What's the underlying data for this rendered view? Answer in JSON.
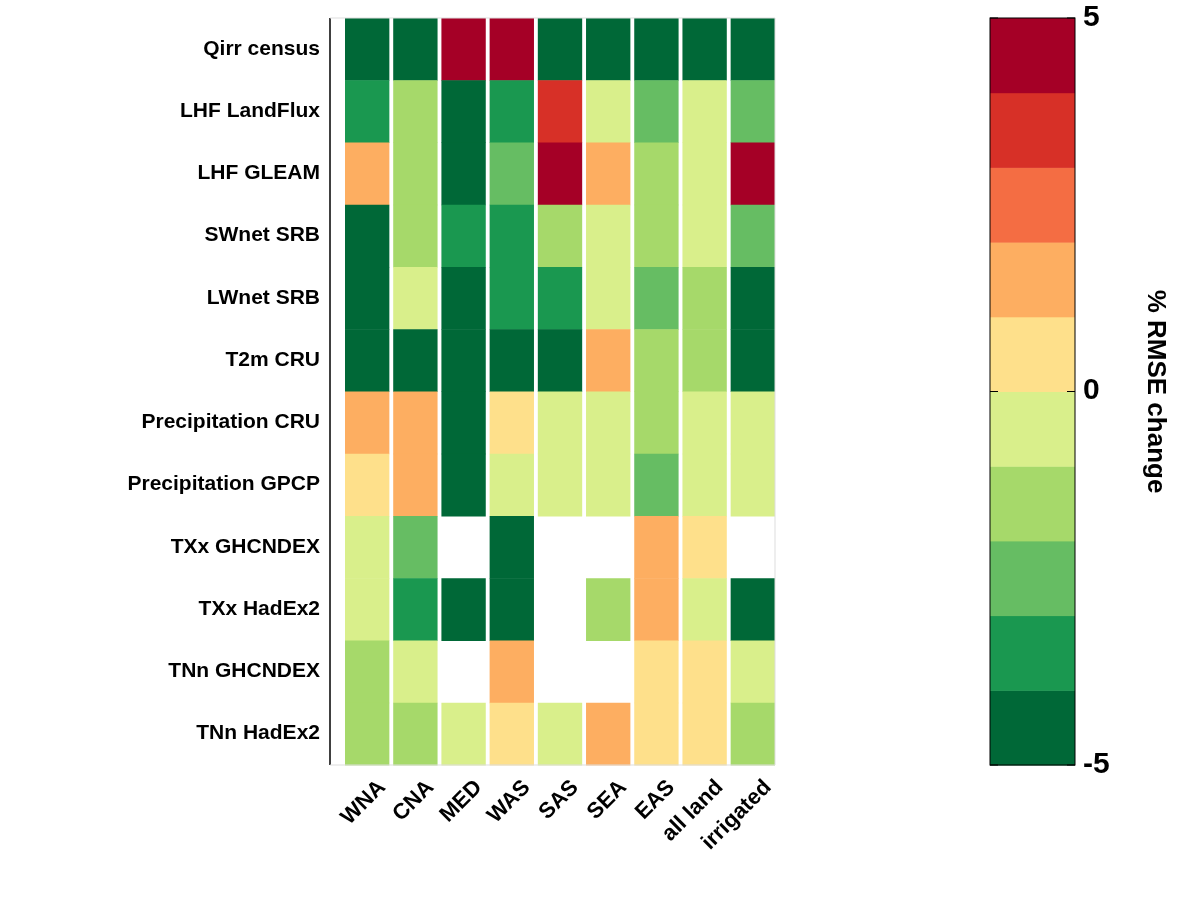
{
  "chart_data": {
    "type": "heatmap",
    "clabel": "% RMSE change",
    "categories": [
      "WNA",
      "CNA",
      "MED",
      "WAS",
      "SAS",
      "SEA",
      "EAS",
      "all land",
      "irrigated"
    ],
    "y_categories": [
      "Qirr census",
      "LHF LandFlux",
      "LHF GLEAM",
      "SWnet SRB",
      "LWnet SRB",
      "T2m CRU",
      "Precipitation CRU",
      "Precipitation GPCP",
      "TXx GHCNDEX",
      "TXx HadEx2",
      "TNn GHCNDEX",
      "TNn HadEx2"
    ],
    "cells": [
      [
        -4.5,
        -4.5,
        4.5,
        4.5,
        -4.5,
        -4.5,
        -4.5,
        -4.5,
        -4.5
      ],
      [
        -3.5,
        -1.5,
        -4.5,
        -3.5,
        3.5,
        -0.5,
        -2.5,
        -0.5,
        -2.5
      ],
      [
        1.5,
        -1.5,
        -4.5,
        -2.5,
        4.5,
        1.5,
        -1.5,
        -0.5,
        4.5
      ],
      [
        -4.5,
        -1.5,
        -3.5,
        -3.5,
        -1.5,
        -0.5,
        -1.5,
        -0.5,
        -2.5
      ],
      [
        -4.5,
        -0.5,
        -4.5,
        -3.5,
        -3.5,
        -0.5,
        -2.5,
        -1.5,
        -4.5
      ],
      [
        -4.5,
        -4.5,
        -4.5,
        -4.5,
        -4.5,
        1.5,
        -1.5,
        -1.5,
        -4.5
      ],
      [
        1.5,
        1.5,
        -4.5,
        0.5,
        -0.5,
        -0.5,
        -1.5,
        -0.5,
        -0.5
      ],
      [
        0.5,
        1.5,
        -4.5,
        -0.5,
        -0.5,
        -0.5,
        -2.5,
        -0.5,
        -0.5
      ],
      [
        -0.5,
        -2.5,
        null,
        -4.5,
        null,
        null,
        1.5,
        0.5,
        null
      ],
      [
        -0.5,
        -3.5,
        -4.5,
        -4.5,
        null,
        -1.5,
        1.5,
        -0.5,
        -4.5
      ],
      [
        -1.5,
        -0.5,
        null,
        1.5,
        null,
        null,
        0.5,
        0.5,
        -0.5
      ],
      [
        -1.5,
        -1.5,
        -0.5,
        0.5,
        -0.5,
        1.5,
        0.5,
        0.5,
        -1.5
      ]
    ],
    "clim": [
      -5,
      5
    ],
    "cticks": [
      -5,
      0,
      5
    ]
  }
}
